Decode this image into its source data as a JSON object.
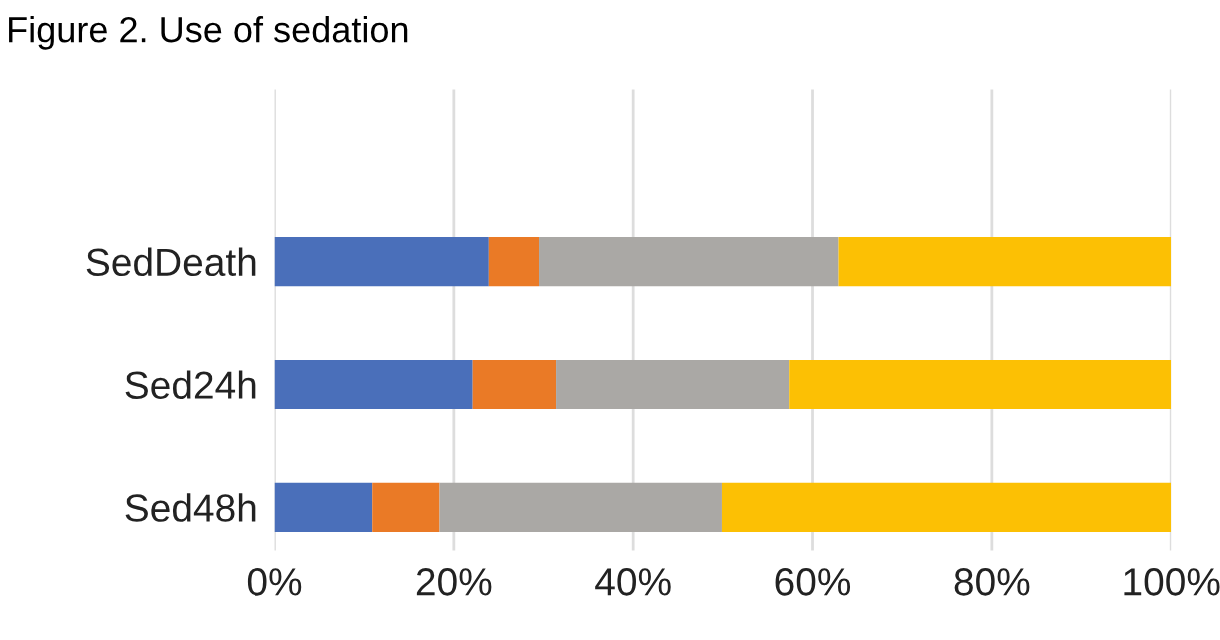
{
  "chart_data": {
    "type": "bar",
    "orientation": "horizontal",
    "stacked": true,
    "title": "Figure 2. Use of sedation",
    "categories": [
      "SedDeath",
      "Sed24h",
      "Sed48h"
    ],
    "series": [
      {
        "color": "#4a6fba",
        "values": [
          23.9,
          22.1,
          10.9
        ]
      },
      {
        "color": "#ea7a26",
        "values": [
          5.6,
          9.3,
          7.5
        ]
      },
      {
        "color": "#aaa8a5",
        "values": [
          33.4,
          26.0,
          31.5
        ]
      },
      {
        "color": "#fcc004",
        "values": [
          37.1,
          42.6,
          50.1
        ]
      }
    ],
    "xlim": [
      0,
      100
    ],
    "xticks": [
      {
        "value": 0,
        "label": "0%"
      },
      {
        "value": 20,
        "label": "20%"
      },
      {
        "value": 40,
        "label": "40%"
      },
      {
        "value": 60,
        "label": "60%"
      },
      {
        "value": 80,
        "label": "80%"
      },
      {
        "value": 100,
        "label": "100%"
      }
    ],
    "grid": "x"
  }
}
